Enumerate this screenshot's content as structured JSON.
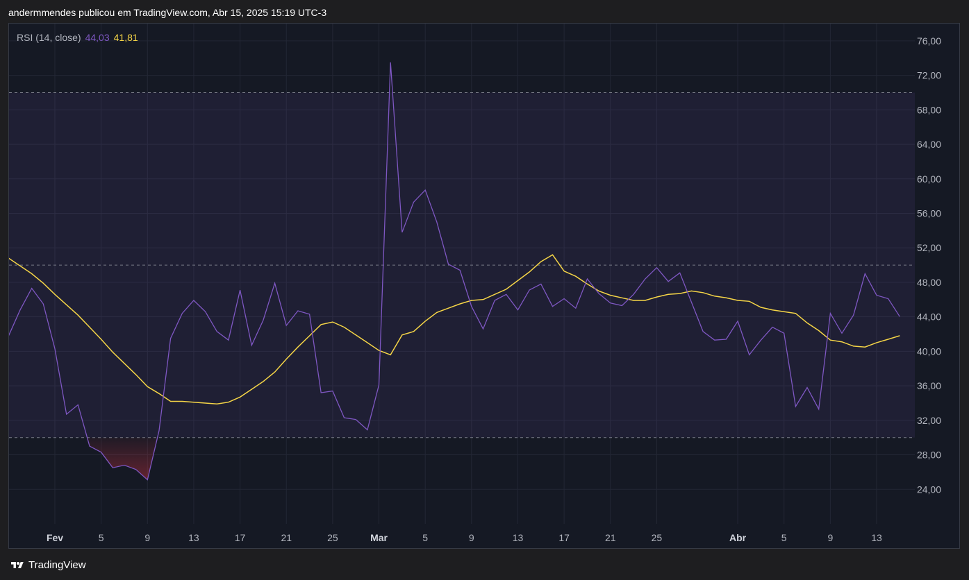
{
  "header": {
    "title": "andermmendes publicou em TradingView.com, Abr 15, 2025 15:19 UTC-3"
  },
  "legend": {
    "indicator": "RSI (14, close)",
    "rsi_value": "44,03",
    "ma_value": "41,81"
  },
  "footer": {
    "brand": "TradingView"
  },
  "colors": {
    "rsi": "#7e57c2",
    "ma": "#f5d547",
    "band_fill": "#7e57c2",
    "background": "#151924",
    "oversold_fill": "#f23645"
  },
  "chart_data": {
    "type": "line",
    "ylim": [
      20,
      78
    ],
    "yticks": [
      {
        "value": 24,
        "label": "24,00"
      },
      {
        "value": 28,
        "label": "28,00"
      },
      {
        "value": 32,
        "label": "32,00"
      },
      {
        "value": 36,
        "label": "36,00"
      },
      {
        "value": 40,
        "label": "40,00"
      },
      {
        "value": 44,
        "label": "44,00"
      },
      {
        "value": 48,
        "label": "48,00"
      },
      {
        "value": 52,
        "label": "52,00"
      },
      {
        "value": 56,
        "label": "56,00"
      },
      {
        "value": 60,
        "label": "60,00"
      },
      {
        "value": 64,
        "label": "64,00"
      },
      {
        "value": 68,
        "label": "68,00"
      },
      {
        "value": 72,
        "label": "72,00"
      },
      {
        "value": 76,
        "label": "76,00"
      }
    ],
    "bands": {
      "upper": 70,
      "middle": 50,
      "lower": 30
    },
    "xticks": [
      {
        "date": "2025-02-01",
        "label": "Fev",
        "bold": true
      },
      {
        "date": "2025-02-05",
        "label": "5"
      },
      {
        "date": "2025-02-09",
        "label": "9"
      },
      {
        "date": "2025-02-13",
        "label": "13"
      },
      {
        "date": "2025-02-17",
        "label": "17"
      },
      {
        "date": "2025-02-21",
        "label": "21"
      },
      {
        "date": "2025-02-25",
        "label": "25"
      },
      {
        "date": "2025-03-01",
        "label": "Mar",
        "bold": true
      },
      {
        "date": "2025-03-05",
        "label": "5"
      },
      {
        "date": "2025-03-09",
        "label": "9"
      },
      {
        "date": "2025-03-13",
        "label": "13"
      },
      {
        "date": "2025-03-17",
        "label": "17"
      },
      {
        "date": "2025-03-21",
        "label": "21"
      },
      {
        "date": "2025-03-25",
        "label": "25"
      },
      {
        "date": "2025-04-01",
        "label": "Abr",
        "bold": true
      },
      {
        "date": "2025-04-05",
        "label": "5"
      },
      {
        "date": "2025-04-09",
        "label": "9"
      },
      {
        "date": "2025-04-13",
        "label": "13"
      }
    ],
    "dates": [
      "2025-01-28",
      "2025-01-29",
      "2025-01-30",
      "2025-01-31",
      "2025-02-01",
      "2025-02-02",
      "2025-02-03",
      "2025-02-04",
      "2025-02-05",
      "2025-02-06",
      "2025-02-07",
      "2025-02-08",
      "2025-02-09",
      "2025-02-10",
      "2025-02-11",
      "2025-02-12",
      "2025-02-13",
      "2025-02-14",
      "2025-02-15",
      "2025-02-16",
      "2025-02-17",
      "2025-02-18",
      "2025-02-19",
      "2025-02-20",
      "2025-02-21",
      "2025-02-22",
      "2025-02-23",
      "2025-02-24",
      "2025-02-25",
      "2025-02-26",
      "2025-02-27",
      "2025-02-28",
      "2025-03-01",
      "2025-03-02",
      "2025-03-03",
      "2025-03-04",
      "2025-03-05",
      "2025-03-06",
      "2025-03-07",
      "2025-03-08",
      "2025-03-09",
      "2025-03-10",
      "2025-03-11",
      "2025-03-12",
      "2025-03-13",
      "2025-03-14",
      "2025-03-15",
      "2025-03-16",
      "2025-03-17",
      "2025-03-18",
      "2025-03-19",
      "2025-03-20",
      "2025-03-21",
      "2025-03-22",
      "2025-03-23",
      "2025-03-24",
      "2025-03-25",
      "2025-03-26",
      "2025-03-27",
      "2025-03-28",
      "2025-03-29",
      "2025-03-30",
      "2025-03-31",
      "2025-04-01",
      "2025-04-02",
      "2025-04-03",
      "2025-04-04",
      "2025-04-05",
      "2025-04-06",
      "2025-04-07",
      "2025-04-08",
      "2025-04-09",
      "2025-04-10",
      "2025-04-11",
      "2025-04-12",
      "2025-04-13",
      "2025-04-14",
      "2025-04-15"
    ],
    "series": [
      {
        "key": "rsi",
        "values": [
          41.8,
          44.8,
          47.3,
          45.5,
          40.3,
          32.7,
          33.8,
          29.0,
          28.3,
          26.5,
          26.8,
          26.3,
          25.1,
          30.8,
          41.5,
          44.4,
          45.9,
          44.6,
          42.3,
          41.3,
          47.1,
          40.7,
          43.6,
          47.9,
          43.0,
          44.7,
          44.3,
          35.2,
          35.4,
          32.3,
          32.1,
          30.9,
          36.1,
          73.5,
          53.8,
          57.3,
          58.7,
          55.0,
          50.1,
          49.4,
          45.2,
          42.6,
          45.9,
          46.6,
          44.8,
          47.1,
          47.8,
          45.2,
          46.1,
          45.0,
          48.4,
          46.7,
          45.6,
          45.3,
          46.6,
          48.4,
          49.7,
          48.1,
          49.1,
          45.7,
          42.3,
          41.3,
          41.4,
          43.5,
          39.6,
          41.3,
          42.8,
          42.1,
          33.6,
          35.8,
          33.3,
          44.4,
          42.1,
          44.2,
          49.0,
          46.5,
          46.1,
          44.03
        ]
      },
      {
        "key": "ma",
        "values": [
          50.8,
          49.9,
          49.0,
          47.9,
          46.6,
          45.4,
          44.2,
          42.8,
          41.4,
          39.9,
          38.6,
          37.3,
          35.9,
          35.1,
          34.2,
          34.2,
          34.1,
          34.0,
          33.9,
          34.1,
          34.7,
          35.6,
          36.5,
          37.6,
          39.1,
          40.5,
          41.8,
          43.1,
          43.4,
          42.8,
          41.9,
          41.0,
          40.1,
          39.6,
          41.9,
          42.3,
          43.5,
          44.5,
          45.0,
          45.5,
          45.9,
          46.0,
          46.6,
          47.2,
          48.2,
          49.2,
          50.4,
          51.2,
          49.3,
          48.7,
          47.8,
          47.0,
          46.5,
          46.2,
          45.9,
          45.9,
          46.3,
          46.6,
          46.7,
          47.0,
          46.8,
          46.4,
          46.2,
          45.9,
          45.8,
          45.1,
          44.8,
          44.6,
          44.4,
          43.3,
          42.4,
          41.3,
          41.1,
          40.6,
          40.5,
          41.0,
          41.4,
          41.81
        ]
      }
    ]
  }
}
